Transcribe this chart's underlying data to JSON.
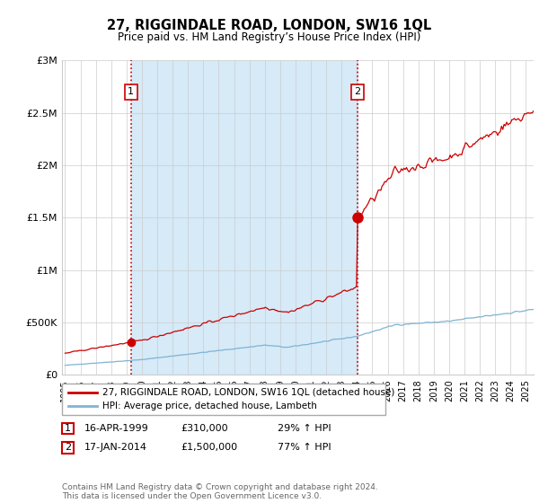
{
  "title": "27, RIGGINDALE ROAD, LONDON, SW16 1QL",
  "subtitle": "Price paid vs. HM Land Registry’s House Price Index (HPI)",
  "ylabel_ticks": [
    "£0",
    "£500K",
    "£1M",
    "£1.5M",
    "£2M",
    "£2.5M",
    "£3M"
  ],
  "ytick_values": [
    0,
    500000,
    1000000,
    1500000,
    2000000,
    2500000,
    3000000
  ],
  "ylim": [
    0,
    3000000
  ],
  "xlim_start": 1994.8,
  "xlim_end": 2025.5,
  "background_color": "#ffffff",
  "grid_color": "#cccccc",
  "hpi_line_color": "#7fb3d3",
  "price_line_color": "#cc0000",
  "fill_color": "#d6eaf8",
  "sale1_x": 1999.29,
  "sale1_y": 310000,
  "sale2_x": 2014.04,
  "sale2_y": 1500000,
  "sale1_label": "1",
  "sale2_label": "2",
  "legend_line1": "27, RIGGINDALE ROAD, LONDON, SW16 1QL (detached house)",
  "legend_line2": "HPI: Average price, detached house, Lambeth",
  "copyright": "Contains HM Land Registry data © Crown copyright and database right 2024.\nThis data is licensed under the Open Government Licence v3.0."
}
